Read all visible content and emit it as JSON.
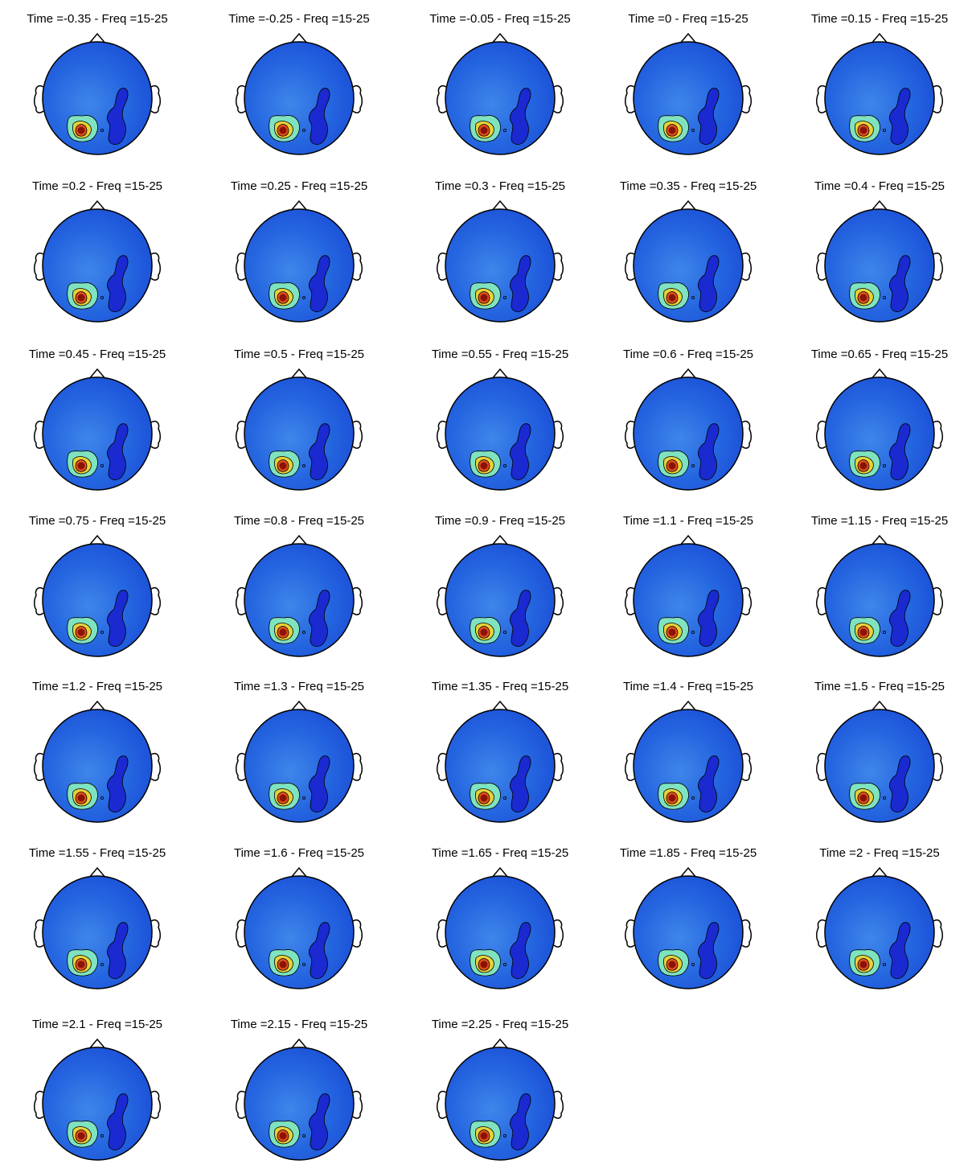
{
  "panels": [
    {
      "title": "Time =-0.35 - Freq =15-25"
    },
    {
      "title": "Time =-0.25 - Freq =15-25"
    },
    {
      "title": "Time =-0.05 - Freq =15-25"
    },
    {
      "title": "Time =0 - Freq =15-25"
    },
    {
      "title": "Time =0.15 - Freq =15-25"
    },
    {
      "title": "Time =0.2 - Freq =15-25"
    },
    {
      "title": "Time =0.25 - Freq =15-25"
    },
    {
      "title": "Time =0.3 - Freq =15-25"
    },
    {
      "title": "Time =0.35 - Freq =15-25"
    },
    {
      "title": "Time =0.4 - Freq =15-25"
    },
    {
      "title": "Time =0.45 - Freq =15-25"
    },
    {
      "title": "Time =0.5 - Freq =15-25"
    },
    {
      "title": "Time =0.55 - Freq =15-25"
    },
    {
      "title": "Time =0.6 - Freq =15-25"
    },
    {
      "title": "Time =0.65 - Freq =15-25"
    },
    {
      "title": "Time =0.75 - Freq =15-25"
    },
    {
      "title": "Time =0.8 - Freq =15-25"
    },
    {
      "title": "Time =0.9 - Freq =15-25"
    },
    {
      "title": "Time =1.1 - Freq =15-25"
    },
    {
      "title": "Time =1.15 - Freq =15-25"
    },
    {
      "title": "Time =1.2 - Freq =15-25"
    },
    {
      "title": "Time =1.3 - Freq =15-25"
    },
    {
      "title": "Time =1.35 - Freq =15-25"
    },
    {
      "title": "Time =1.4 - Freq =15-25"
    },
    {
      "title": "Time =1.5 - Freq =15-25"
    },
    {
      "title": "Time =1.55 - Freq =15-25"
    },
    {
      "title": "Time =1.6 - Freq =15-25"
    },
    {
      "title": "Time =1.65 - Freq =15-25"
    },
    {
      "title": "Time =1.85 - Freq =15-25"
    },
    {
      "title": "Time =2 - Freq =15-25"
    },
    {
      "title": "Time =2.1 - Freq =15-25"
    },
    {
      "title": "Time =2.15 - Freq =15-25"
    },
    {
      "title": "Time =2.25 - Freq =15-25"
    }
  ]
}
